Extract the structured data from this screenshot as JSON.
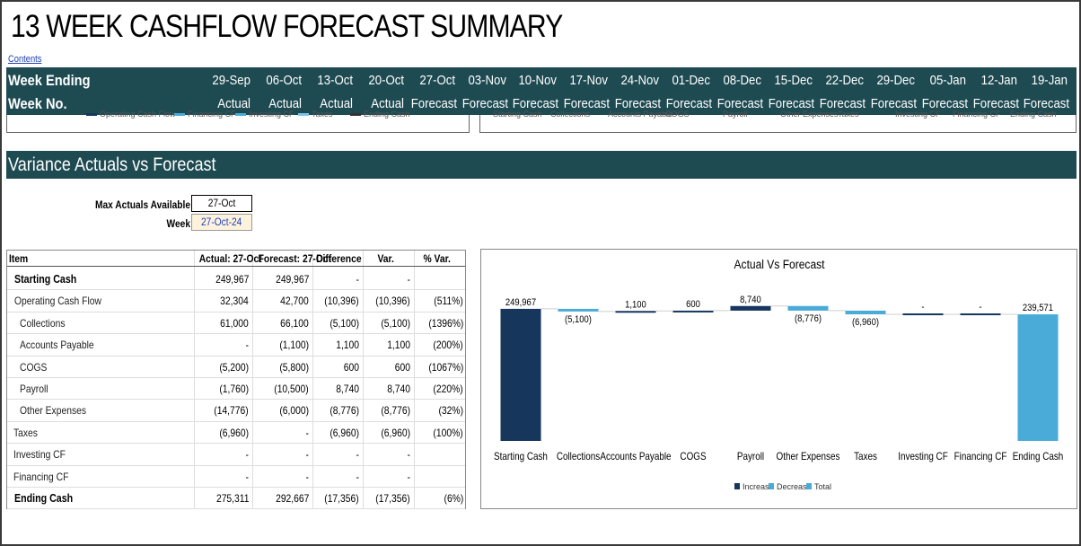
{
  "title": "13 WEEK CASHFLOW FORECAST SUMMARY",
  "contents_link": "Contents",
  "header": {
    "row1_label": "Week Ending",
    "row2_label": "Week No.",
    "weeks": [
      {
        "date": "29-Sep",
        "type": "Actual"
      },
      {
        "date": "06-Oct",
        "type": "Actual"
      },
      {
        "date": "13-Oct",
        "type": "Actual"
      },
      {
        "date": "20-Oct",
        "type": "Actual"
      },
      {
        "date": "27-Oct",
        "type": "Forecast"
      },
      {
        "date": "03-Nov",
        "type": "Forecast"
      },
      {
        "date": "10-Nov",
        "type": "Forecast"
      },
      {
        "date": "17-Nov",
        "type": "Forecast"
      },
      {
        "date": "24-Nov",
        "type": "Forecast"
      },
      {
        "date": "01-Dec",
        "type": "Forecast"
      },
      {
        "date": "08-Dec",
        "type": "Forecast"
      },
      {
        "date": "15-Dec",
        "type": "Forecast"
      },
      {
        "date": "22-Dec",
        "type": "Forecast"
      },
      {
        "date": "29-Dec",
        "type": "Forecast"
      },
      {
        "date": "05-Jan",
        "type": "Forecast"
      },
      {
        "date": "12-Jan",
        "type": "Forecast"
      },
      {
        "date": "19-Jan",
        "type": "Forecast"
      }
    ]
  },
  "hidden_legends": {
    "left": [
      "Operating Cash Flow",
      "Financing CF",
      "Investing CF",
      "Taxes",
      "Ending Cash"
    ],
    "right": [
      "Starting Cash",
      "Collections",
      "Accounts Payable",
      "COGS",
      "Payroll",
      "Other Expenses",
      "Taxes",
      "Investing CF",
      "Financing CF",
      "Ending Cash"
    ]
  },
  "section_title": "Variance Actuals vs Forecast",
  "controls": {
    "max_actuals_label": "Max Actuals Available",
    "max_actuals_value": "27-Oct",
    "week_label": "Week",
    "week_value": "27-Oct-24"
  },
  "table": {
    "headers": [
      "Item",
      "Actual: 27-Oct",
      "Forecast: 27-Oct",
      "Difference",
      "Var.",
      "% Var."
    ],
    "rows": [
      {
        "item": "Starting Cash",
        "actual": "249,967",
        "forecast": "249,967",
        "diff": "-",
        "var": "-",
        "pct": "",
        "bold": true,
        "indent": 1
      },
      {
        "item": "Operating Cash Flow",
        "actual": "32,304",
        "forecast": "42,700",
        "diff": "(10,396)",
        "var": "(10,396)",
        "pct": "(511%)",
        "bold": false,
        "indent": 1
      },
      {
        "item": "Collections",
        "actual": "61,000",
        "forecast": "66,100",
        "diff": "(5,100)",
        "var": "(5,100)",
        "pct": "(1396%)",
        "bold": false,
        "indent": 2
      },
      {
        "item": "Accounts Payable",
        "actual": "-",
        "forecast": "(1,100)",
        "diff": "1,100",
        "var": "1,100",
        "pct": "(200%)",
        "bold": false,
        "indent": 2
      },
      {
        "item": "COGS",
        "actual": "(5,200)",
        "forecast": "(5,800)",
        "diff": "600",
        "var": "600",
        "pct": "(1067%)",
        "bold": false,
        "indent": 2
      },
      {
        "item": "Payroll",
        "actual": "(1,760)",
        "forecast": "(10,500)",
        "diff": "8,740",
        "var": "8,740",
        "pct": "(220%)",
        "bold": false,
        "indent": 2
      },
      {
        "item": "Other Expenses",
        "actual": "(14,776)",
        "forecast": "(6,000)",
        "diff": "(8,776)",
        "var": "(8,776)",
        "pct": "(32%)",
        "bold": false,
        "indent": 2
      },
      {
        "item": "Taxes",
        "actual": "(6,960)",
        "forecast": "-",
        "diff": "(6,960)",
        "var": "(6,960)",
        "pct": "(100%)",
        "bold": false,
        "indent": 0
      },
      {
        "item": "Investing CF",
        "actual": "-",
        "forecast": "-",
        "diff": "-",
        "var": "-",
        "pct": "",
        "bold": false,
        "indent": 0
      },
      {
        "item": "Financing CF",
        "actual": "-",
        "forecast": "-",
        "diff": "-",
        "var": "-",
        "pct": "",
        "bold": false,
        "indent": 0
      },
      {
        "item": "Ending Cash",
        "actual": "275,311",
        "forecast": "292,667",
        "diff": "(17,356)",
        "var": "(17,356)",
        "pct": "(6%)",
        "bold": true,
        "indent": 1
      }
    ]
  },
  "colors": {
    "band": "#1e4a52",
    "increase": "#16365c",
    "decrease": "#4aabd8",
    "total_start": "#16365c",
    "total_end": "#4aabd8"
  },
  "chart_data": {
    "type": "bar",
    "subtype": "waterfall",
    "title": "Actual Vs Forecast",
    "categories": [
      "Starting Cash",
      "Collections",
      "Accounts Payable",
      "COGS",
      "Payroll",
      "Other Expenses",
      "Taxes",
      "Investing CF",
      "Financing CF",
      "Ending Cash"
    ],
    "values": [
      249967,
      -5100,
      1100,
      600,
      8740,
      -8776,
      -6960,
      0,
      0,
      239571
    ],
    "kinds": [
      "total",
      "decrease",
      "increase",
      "increase",
      "increase",
      "decrease",
      "decrease",
      "flat",
      "flat",
      "total"
    ],
    "data_labels": [
      "249,967",
      "(5,100)",
      "1,100",
      "600",
      "8,740",
      "(8,776)",
      "(6,960)",
      "-",
      "-",
      "239,571"
    ],
    "legend": [
      "Increase",
      "Decrease",
      "Total"
    ],
    "legend_position": "bottom",
    "ylim": [
      0,
      260000
    ],
    "grid": false
  }
}
